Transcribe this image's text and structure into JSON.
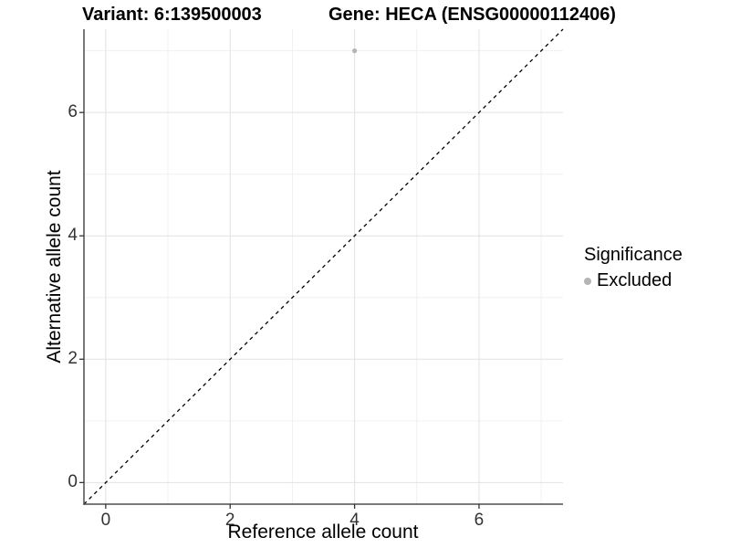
{
  "figure": {
    "title_variant": "Variant: 6:139500003",
    "title_gene": "Gene: HECA (ENSG00000112406)"
  },
  "axes": {
    "x_label": "Reference allele count",
    "y_label": "Alternative allele count"
  },
  "legend": {
    "title": "Significance",
    "items": [
      {
        "label": "Excluded",
        "color": "#b5b5b5"
      }
    ]
  },
  "colors": {
    "background": "#ffffff",
    "grid_major": "#e2e2e2",
    "grid_minor": "#f0f0f0",
    "axis_line": "#4d4d4d",
    "tick_mark": "#333333",
    "tick_label": "#333333",
    "point": "#b5b5b5",
    "identity_line": "#000000"
  },
  "chart_data": {
    "type": "scatter",
    "title": "Variant: 6:139500003 — Gene: HECA (ENSG00000112406)",
    "xlabel": "Reference allele count",
    "ylabel": "Alternative allele count",
    "xlim": [
      -0.35,
      7.35
    ],
    "ylim": [
      -0.35,
      7.35
    ],
    "x_ticks": [
      0,
      2,
      4,
      6
    ],
    "y_ticks": [
      0,
      2,
      4,
      6
    ],
    "x_minor_ticks": [
      1,
      3,
      5,
      7
    ],
    "y_minor_ticks": [
      1,
      3,
      5,
      7
    ],
    "grid": true,
    "legend_position": "right",
    "series": [
      {
        "name": "Excluded",
        "color": "#b5b5b5",
        "points": [
          [
            4,
            7
          ]
        ]
      }
    ],
    "reference_line": {
      "style": "dashed",
      "x1": -0.35,
      "y1": -0.35,
      "x2": 7.35,
      "y2": 7.35
    }
  }
}
